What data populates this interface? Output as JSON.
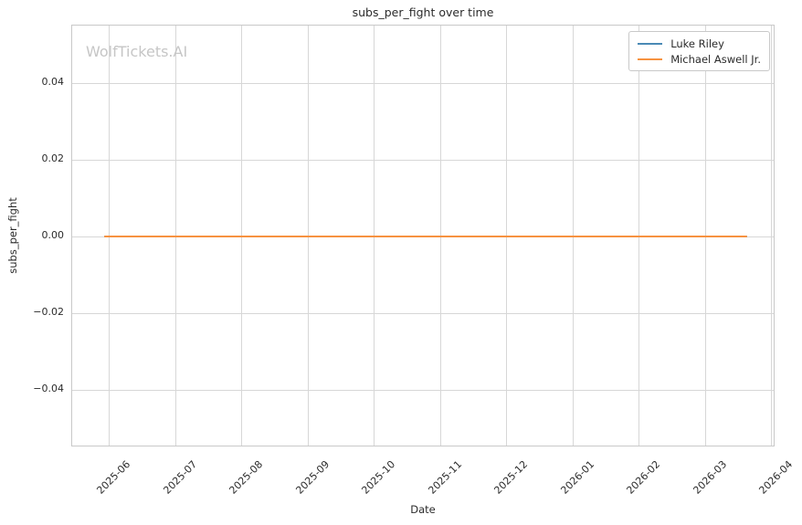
{
  "chart_data": {
    "type": "line",
    "title": "subs_per_fight over time",
    "watermark": "WolfTickets.AI",
    "xlabel": "Date",
    "ylabel": "subs_per_fight",
    "x_tick_labels": [
      "2025-06",
      "2025-07",
      "2025-08",
      "2025-09",
      "2025-10",
      "2025-11",
      "2025-12",
      "2026-01",
      "2026-02",
      "2026-03",
      "2026-04"
    ],
    "y_tick_labels": [
      "0.04",
      "0.02",
      "0.00",
      "−0.02",
      "−0.04"
    ],
    "y_tick_values": [
      0.04,
      0.02,
      0.0,
      -0.02,
      -0.04
    ],
    "ylim": [
      -0.055,
      0.055
    ],
    "grid": true,
    "legend_position": "upper right",
    "series": [
      {
        "name": "Luke Riley",
        "color": "#4a8ab5",
        "points": [
          [
            "2025-05-30",
            0.0
          ],
          [
            "2026-03-21",
            0.0
          ]
        ]
      },
      {
        "name": "Michael Aswell Jr.",
        "color": "#f79240",
        "points": [
          [
            "2025-05-30",
            0.0
          ],
          [
            "2026-03-21",
            0.0
          ]
        ]
      }
    ],
    "colors": {
      "grid": "#d7d7d7",
      "spine": "#c9c9c9",
      "text": "#2b2b2b",
      "watermark": "#c6c6c6"
    }
  }
}
